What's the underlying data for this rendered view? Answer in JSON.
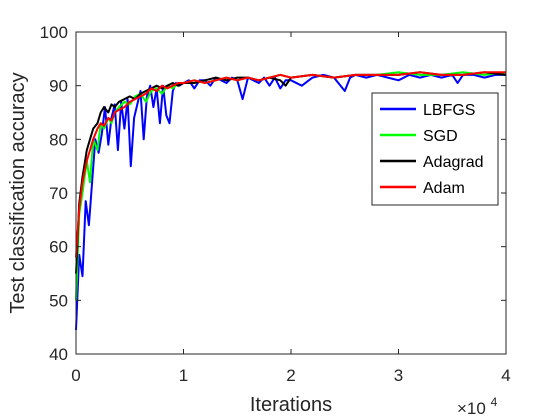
{
  "chart_data": {
    "type": "line",
    "title": "",
    "xlabel": "Iterations",
    "ylabel": "Test classification accuracy",
    "x_multiplier_label": {
      "base": "×10",
      "exponent": "4"
    },
    "xlim": [
      0,
      4
    ],
    "ylim": [
      40,
      100
    ],
    "x_ticks": [
      "0",
      "1",
      "2",
      "3",
      "4"
    ],
    "y_ticks": [
      "40",
      "50",
      "60",
      "70",
      "80",
      "90",
      "100"
    ],
    "grid": false,
    "legend_position": "right",
    "series": [
      {
        "name": "LBFGS",
        "color": "#0000FF",
        "x": [
          0.0,
          0.03,
          0.06,
          0.09,
          0.12,
          0.15,
          0.18,
          0.21,
          0.24,
          0.27,
          0.3,
          0.33,
          0.36,
          0.39,
          0.42,
          0.45,
          0.48,
          0.51,
          0.54,
          0.57,
          0.6,
          0.63,
          0.66,
          0.69,
          0.72,
          0.75,
          0.78,
          0.81,
          0.84,
          0.87,
          0.9,
          0.93,
          0.96,
          1.0,
          1.05,
          1.1,
          1.15,
          1.2,
          1.25,
          1.3,
          1.35,
          1.4,
          1.45,
          1.5,
          1.55,
          1.6,
          1.65,
          1.7,
          1.75,
          1.8,
          1.85,
          1.9,
          1.95,
          2.0,
          2.1,
          2.2,
          2.3,
          2.4,
          2.5,
          2.55,
          2.6,
          2.7,
          2.8,
          2.9,
          3.0,
          3.1,
          3.2,
          3.3,
          3.4,
          3.5,
          3.55,
          3.6,
          3.7,
          3.8,
          3.9,
          4.0
        ],
        "values": [
          44.5,
          58.5,
          54.5,
          68.5,
          64.0,
          72.0,
          80.0,
          77.5,
          81.0,
          86.0,
          79.0,
          84.0,
          86.5,
          78.0,
          87.0,
          82.0,
          87.5,
          75.0,
          84.0,
          86.5,
          89.0,
          80.0,
          88.0,
          90.0,
          86.0,
          89.5,
          83.0,
          90.0,
          84.5,
          83.0,
          89.0,
          90.5,
          90.0,
          90.5,
          91.0,
          89.5,
          91.0,
          91.0,
          90.0,
          91.5,
          91.0,
          90.5,
          91.5,
          91.0,
          87.5,
          91.5,
          91.0,
          90.5,
          91.5,
          90.0,
          91.5,
          89.5,
          91.0,
          91.0,
          90.0,
          91.5,
          92.0,
          91.5,
          89.0,
          91.5,
          92.0,
          91.5,
          92.0,
          91.5,
          91.0,
          92.0,
          91.5,
          92.0,
          91.5,
          92.0,
          90.5,
          92.0,
          92.0,
          91.5,
          92.0,
          92.0
        ]
      },
      {
        "name": "SGD",
        "color": "#00FF00",
        "x": [
          0.0,
          0.03,
          0.06,
          0.1,
          0.13,
          0.16,
          0.2,
          0.23,
          0.26,
          0.3,
          0.33,
          0.36,
          0.4,
          0.45,
          0.5,
          0.55,
          0.6,
          0.65,
          0.7,
          0.75,
          0.8,
          0.85,
          0.9,
          0.95,
          1.0,
          1.1,
          1.2,
          1.3,
          1.4,
          1.5,
          1.6,
          1.7,
          1.8,
          1.9,
          2.0,
          2.2,
          2.4,
          2.6,
          2.8,
          3.0,
          3.2,
          3.4,
          3.6,
          3.8,
          4.0
        ],
        "values": [
          50.0,
          66.0,
          70.0,
          76.0,
          72.0,
          80.0,
          78.0,
          83.0,
          82.0,
          84.0,
          83.0,
          85.0,
          86.0,
          87.0,
          86.5,
          88.0,
          88.5,
          87.0,
          89.0,
          89.5,
          88.5,
          90.0,
          89.5,
          90.5,
          90.5,
          91.0,
          90.5,
          91.0,
          91.5,
          91.0,
          91.5,
          91.0,
          91.5,
          92.0,
          91.5,
          92.0,
          91.5,
          92.0,
          92.0,
          92.5,
          92.0,
          92.0,
          92.5,
          92.0,
          92.5
        ]
      },
      {
        "name": "Adagrad",
        "color": "#000000",
        "x": [
          0.0,
          0.03,
          0.06,
          0.1,
          0.13,
          0.16,
          0.2,
          0.23,
          0.26,
          0.3,
          0.33,
          0.36,
          0.4,
          0.45,
          0.5,
          0.55,
          0.6,
          0.65,
          0.7,
          0.75,
          0.8,
          0.85,
          0.9,
          0.95,
          1.0,
          1.1,
          1.2,
          1.3,
          1.4,
          1.5,
          1.6,
          1.7,
          1.8,
          1.9,
          1.95,
          2.0,
          2.2,
          2.4,
          2.6,
          2.8,
          3.0,
          3.2,
          3.4,
          3.6,
          3.8,
          4.0
        ],
        "values": [
          55.0,
          68.0,
          73.0,
          78.0,
          80.0,
          82.0,
          83.0,
          85.0,
          86.0,
          85.0,
          86.5,
          86.0,
          87.0,
          87.5,
          88.0,
          87.5,
          88.5,
          89.0,
          89.5,
          90.0,
          89.5,
          90.0,
          90.5,
          90.0,
          90.5,
          90.5,
          91.0,
          91.5,
          91.0,
          91.5,
          91.5,
          91.0,
          91.5,
          91.0,
          90.0,
          91.5,
          92.0,
          91.5,
          92.0,
          92.0,
          92.0,
          92.5,
          92.0,
          92.0,
          92.5,
          92.0
        ]
      },
      {
        "name": "Adam",
        "color": "#FF0000",
        "x": [
          0.0,
          0.03,
          0.06,
          0.1,
          0.13,
          0.16,
          0.2,
          0.23,
          0.26,
          0.3,
          0.33,
          0.36,
          0.4,
          0.45,
          0.5,
          0.55,
          0.6,
          0.65,
          0.7,
          0.75,
          0.8,
          0.85,
          0.9,
          0.95,
          1.0,
          1.1,
          1.2,
          1.3,
          1.4,
          1.5,
          1.6,
          1.7,
          1.8,
          1.9,
          2.0,
          2.2,
          2.4,
          2.6,
          2.8,
          3.0,
          3.2,
          3.4,
          3.6,
          3.8,
          4.0
        ],
        "values": [
          58.0,
          67.0,
          72.0,
          76.0,
          78.0,
          80.0,
          82.0,
          83.0,
          82.5,
          84.0,
          83.5,
          85.0,
          85.5,
          86.0,
          87.0,
          87.5,
          88.0,
          88.5,
          89.5,
          89.0,
          90.0,
          89.5,
          90.0,
          90.5,
          90.5,
          91.0,
          90.5,
          91.0,
          91.5,
          91.0,
          91.5,
          91.0,
          91.5,
          92.0,
          91.5,
          92.0,
          91.5,
          92.0,
          92.0,
          92.0,
          92.5,
          92.0,
          92.0,
          92.5,
          92.5
        ]
      }
    ]
  }
}
